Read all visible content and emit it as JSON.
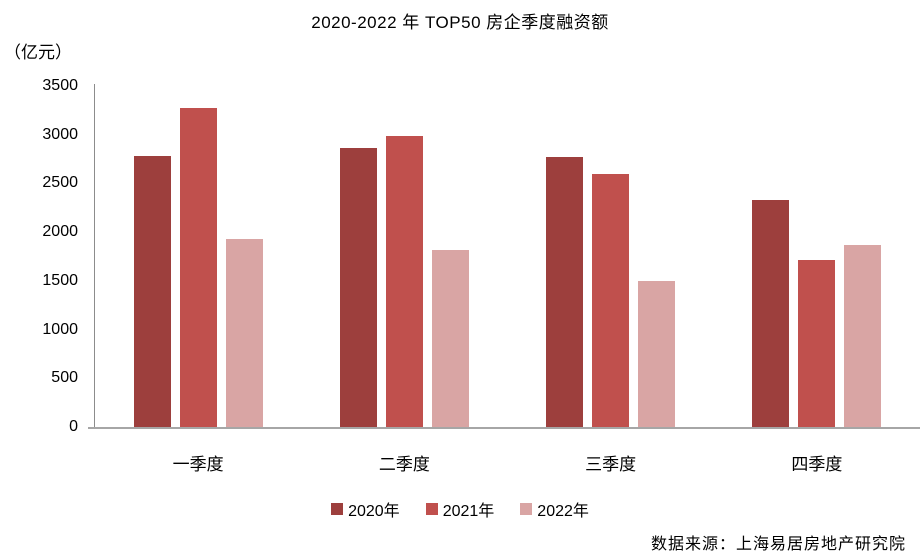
{
  "chart_data": {
    "type": "bar",
    "title": "2020-2022 年 TOP50 房企季度融资额",
    "unit_label": "（亿元）",
    "categories": [
      "一季度",
      "二季度",
      "三季度",
      "四季度"
    ],
    "series": [
      {
        "name": "2020年",
        "color": "#9d3f3d",
        "values": [
          2780,
          2860,
          2770,
          2330
        ]
      },
      {
        "name": "2021年",
        "color": "#c0504d",
        "values": [
          3270,
          2990,
          2600,
          1710
        ]
      },
      {
        "name": "2022年",
        "color": "#d9a5a4",
        "values": [
          1930,
          1820,
          1500,
          1870
        ]
      }
    ],
    "ylim": [
      0,
      3500
    ],
    "yticks": [
      3500,
      3000,
      2500,
      2000,
      1500,
      1000,
      500,
      0
    ],
    "grid": false,
    "legend_position": "bottom",
    "axis_color": "#8c8c8c",
    "baseline_color": "#a6a6a6"
  },
  "source": "数据来源：上海易居房地产研究院"
}
